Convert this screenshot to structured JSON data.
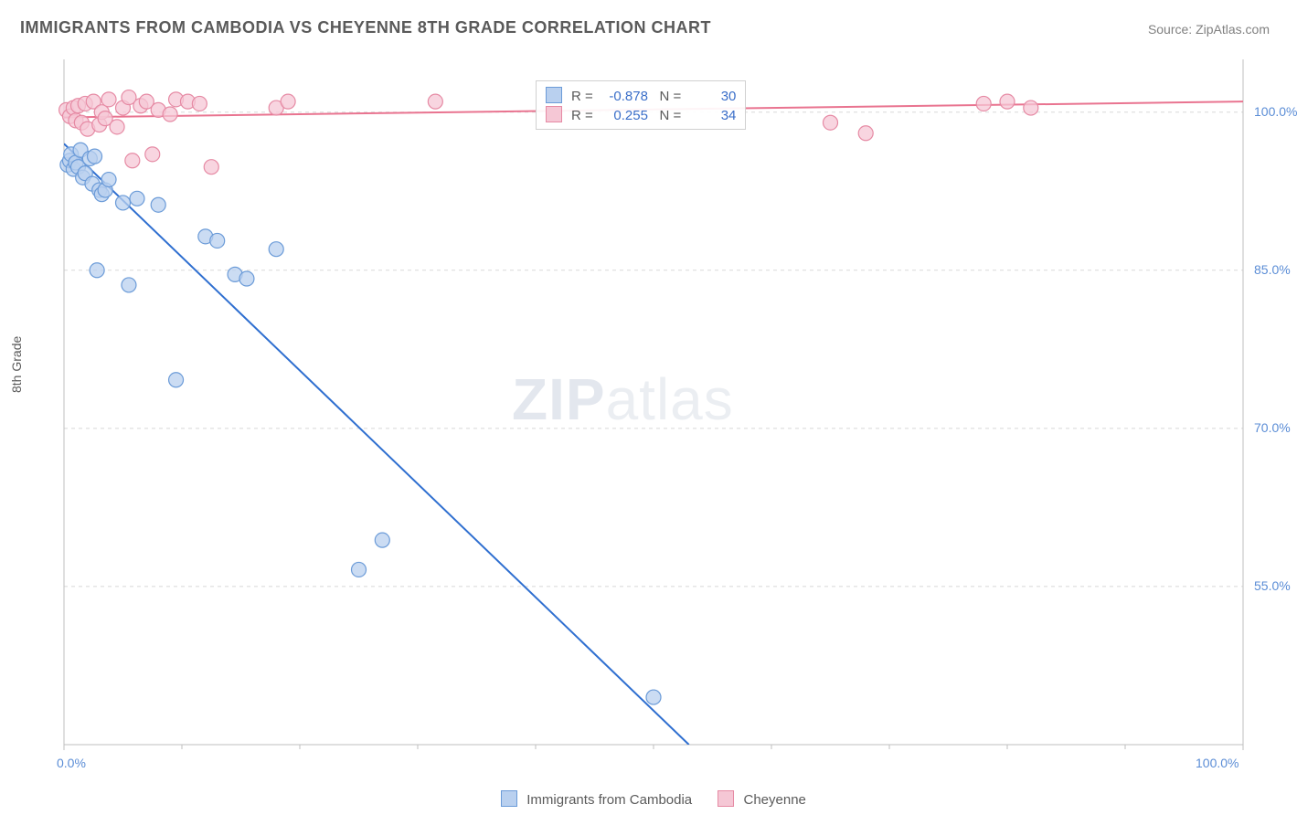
{
  "title": "IMMIGRANTS FROM CAMBODIA VS CHEYENNE 8TH GRADE CORRELATION CHART",
  "source_label": "Source: ",
  "source_name": "ZipAtlas.com",
  "watermark_zip": "ZIP",
  "watermark_rest": "atlas",
  "y_axis_label": "8th Grade",
  "chart": {
    "type": "scatter",
    "xlim": [
      0,
      100
    ],
    "ylim": [
      40,
      105
    ],
    "x_ticks": [
      {
        "v": 0,
        "l": "0.0%"
      },
      {
        "v": 100,
        "l": "100.0%"
      }
    ],
    "y_ticks": [
      {
        "v": 55,
        "l": "55.0%"
      },
      {
        "v": 70,
        "l": "70.0%"
      },
      {
        "v": 85,
        "l": "85.0%"
      },
      {
        "v": 100,
        "l": "100.0%"
      }
    ],
    "grid_color": "#d8d8d8",
    "axis_color": "#bfbfbf",
    "tick_label_color": "#5b8dd6",
    "marker_radius": 8,
    "marker_stroke_width": 1.2,
    "line_width": 2,
    "series": [
      {
        "name": "Immigrants from Cambodia",
        "fill": "#b9d0ef",
        "stroke": "#6b9bd8",
        "line_color": "#2f6fd0",
        "R": "-0.878",
        "N": "30",
        "trend": {
          "x1": 0,
          "y1": 97,
          "x2": 53,
          "y2": 40
        },
        "points": [
          [
            0.3,
            95.0
          ],
          [
            0.5,
            95.4
          ],
          [
            0.6,
            96.0
          ],
          [
            0.8,
            94.6
          ],
          [
            1.0,
            95.2
          ],
          [
            1.2,
            94.8
          ],
          [
            1.4,
            96.4
          ],
          [
            1.6,
            93.8
          ],
          [
            1.8,
            94.2
          ],
          [
            2.2,
            95.6
          ],
          [
            2.4,
            93.2
          ],
          [
            2.6,
            95.8
          ],
          [
            3.0,
            92.6
          ],
          [
            3.2,
            92.2
          ],
          [
            3.5,
            92.6
          ],
          [
            3.8,
            93.6
          ],
          [
            5.0,
            91.4
          ],
          [
            6.2,
            91.8
          ],
          [
            2.8,
            85.0
          ],
          [
            5.5,
            83.6
          ],
          [
            8.0,
            91.2
          ],
          [
            12.0,
            88.2
          ],
          [
            13.0,
            87.8
          ],
          [
            14.5,
            84.6
          ],
          [
            15.5,
            84.2
          ],
          [
            18.0,
            87.0
          ],
          [
            9.5,
            74.6
          ],
          [
            27.0,
            59.4
          ],
          [
            25.0,
            56.6
          ],
          [
            50.0,
            44.5
          ]
        ]
      },
      {
        "name": "Cheyenne",
        "fill": "#f5c7d5",
        "stroke": "#e68aa4",
        "line_color": "#e97490",
        "R": "0.255",
        "N": "34",
        "trend": {
          "x1": 0,
          "y1": 99.5,
          "x2": 100,
          "y2": 101
        },
        "points": [
          [
            0.2,
            100.2
          ],
          [
            0.5,
            99.6
          ],
          [
            0.8,
            100.4
          ],
          [
            1.0,
            99.2
          ],
          [
            1.2,
            100.6
          ],
          [
            1.5,
            99.0
          ],
          [
            1.8,
            100.8
          ],
          [
            2.0,
            98.4
          ],
          [
            2.5,
            101.0
          ],
          [
            3.0,
            98.8
          ],
          [
            3.2,
            100.0
          ],
          [
            3.5,
            99.4
          ],
          [
            3.8,
            101.2
          ],
          [
            4.5,
            98.6
          ],
          [
            5.0,
            100.4
          ],
          [
            5.5,
            101.4
          ],
          [
            5.8,
            95.4
          ],
          [
            6.5,
            100.6
          ],
          [
            7.0,
            101.0
          ],
          [
            7.5,
            96.0
          ],
          [
            8.0,
            100.2
          ],
          [
            9.0,
            99.8
          ],
          [
            9.5,
            101.2
          ],
          [
            10.5,
            101.0
          ],
          [
            11.5,
            100.8
          ],
          [
            12.5,
            94.8
          ],
          [
            18.0,
            100.4
          ],
          [
            19.0,
            101.0
          ],
          [
            31.5,
            101.0
          ],
          [
            65.0,
            99.0
          ],
          [
            68.0,
            98.0
          ],
          [
            78.0,
            100.8
          ],
          [
            80.0,
            101.0
          ],
          [
            82.0,
            100.4
          ]
        ]
      }
    ]
  },
  "legend": {
    "series1_label": "Immigrants from Cambodia",
    "series2_label": "Cheyenne"
  },
  "stats_box": {
    "r_label": "R =",
    "n_label": "N ="
  }
}
